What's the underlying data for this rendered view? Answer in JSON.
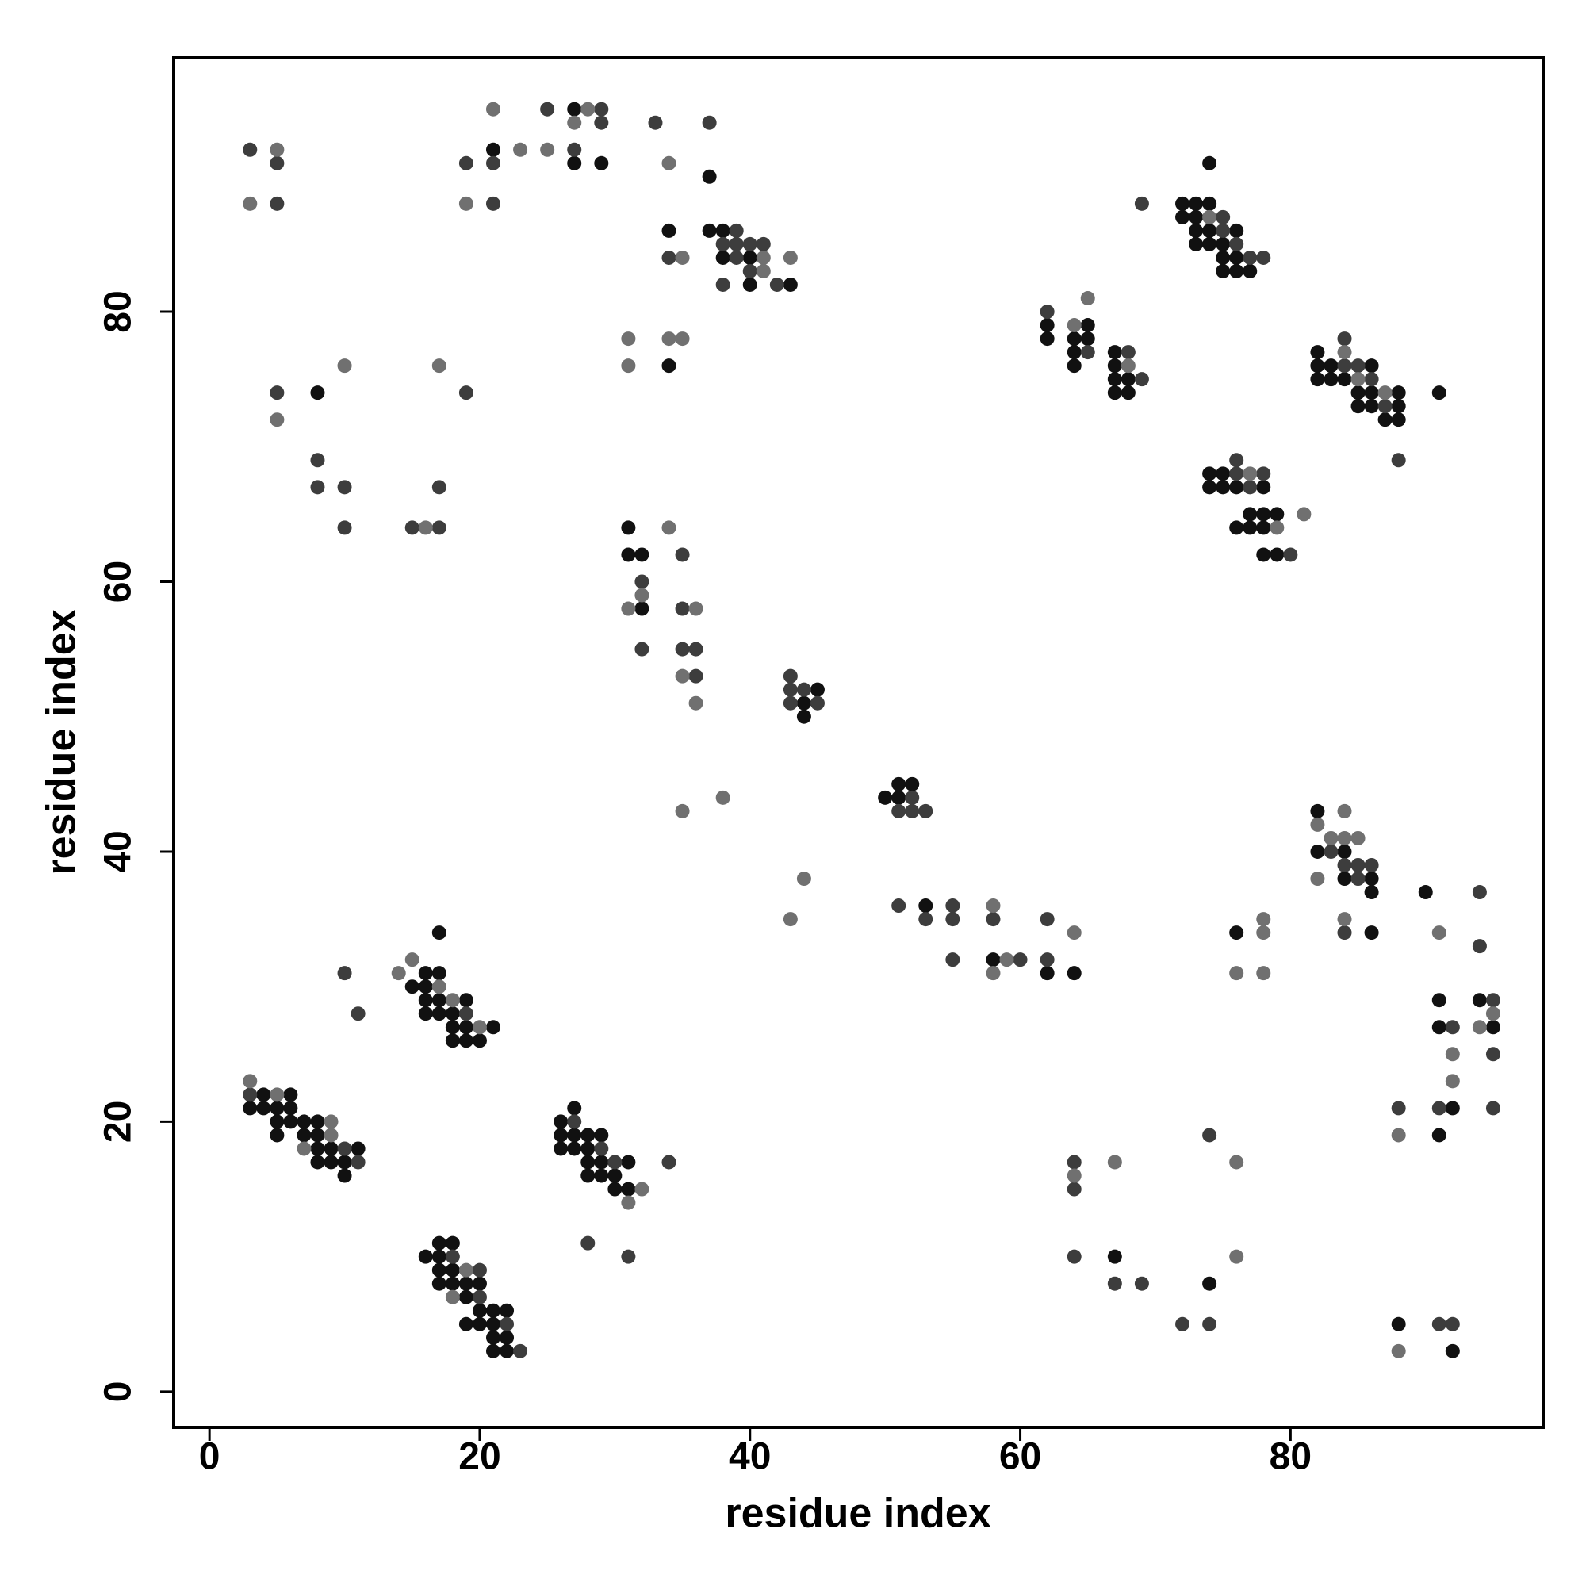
{
  "chart_data": {
    "type": "scatter",
    "xlabel": "residue index",
    "ylabel": "residue index",
    "xlim": [
      -2.65,
      98.7
    ],
    "ylim": [
      -2.65,
      98.8
    ],
    "xticks": [
      0,
      20,
      40,
      60,
      80
    ],
    "yticks": [
      0,
      20,
      40,
      60,
      80
    ],
    "grid": false,
    "series": [
      {
        "color": "#111111",
        "x": [
          4,
          6,
          3,
          4,
          5,
          6,
          5,
          6,
          7,
          8,
          5,
          7,
          8,
          8,
          9,
          11,
          8,
          9,
          10,
          10,
          17,
          16,
          17,
          15,
          16,
          16,
          17,
          19,
          16,
          17,
          18,
          18,
          19,
          21,
          18,
          19,
          20,
          17,
          18,
          16,
          17,
          17,
          18,
          17,
          18,
          19,
          20,
          19,
          20,
          21,
          22,
          19,
          20,
          21,
          21,
          22,
          21,
          22,
          27,
          26,
          26,
          27,
          28,
          29,
          26,
          27,
          28,
          28,
          29,
          31,
          28,
          29,
          30,
          30,
          31,
          8,
          21,
          27,
          27,
          29,
          37,
          34,
          37,
          38,
          38,
          40,
          40,
          43,
          34,
          31,
          31,
          32,
          32,
          45,
          44,
          44,
          50,
          51,
          52,
          51,
          53,
          58,
          62,
          64,
          62,
          62,
          65,
          64,
          65,
          64,
          64,
          67,
          67,
          67,
          68,
          67,
          68,
          74,
          72,
          73,
          74,
          72,
          73,
          73,
          74,
          76,
          73,
          74,
          75,
          75,
          76,
          75,
          76,
          77,
          82,
          82,
          83,
          86,
          82,
          83,
          84,
          85,
          86,
          88,
          85,
          86,
          88,
          87,
          88,
          91,
          74,
          75,
          74,
          75,
          76,
          78,
          77,
          78,
          79,
          76,
          77,
          78,
          78,
          79,
          82,
          82,
          84,
          84,
          86,
          86,
          86,
          76,
          90,
          91,
          94,
          91,
          95,
          92,
          91,
          67,
          74,
          88,
          92
        ],
        "values": [
          22,
          22,
          21,
          21,
          21,
          21,
          20,
          20,
          20,
          20,
          19,
          19,
          19,
          18,
          18,
          18,
          17,
          17,
          17,
          16,
          34,
          31,
          31,
          30,
          30,
          29,
          29,
          29,
          28,
          28,
          28,
          27,
          27,
          27,
          26,
          26,
          26,
          11,
          11,
          10,
          10,
          9,
          9,
          8,
          8,
          8,
          8,
          7,
          6,
          6,
          6,
          5,
          5,
          5,
          4,
          4,
          3,
          3,
          21,
          20,
          19,
          19,
          19,
          19,
          18,
          18,
          18,
          17,
          17,
          17,
          16,
          16,
          16,
          15,
          15,
          74,
          92,
          95,
          91,
          91,
          90,
          86,
          86,
          86,
          84,
          84,
          82,
          82,
          76,
          64,
          62,
          62,
          58,
          52,
          51,
          50,
          44,
          45,
          45,
          44,
          36,
          32,
          31,
          31,
          79,
          78,
          79,
          78,
          78,
          77,
          76,
          77,
          76,
          75,
          75,
          74,
          74,
          91,
          88,
          88,
          88,
          87,
          87,
          86,
          86,
          86,
          85,
          85,
          85,
          84,
          84,
          83,
          83,
          83,
          77,
          76,
          76,
          76,
          75,
          75,
          75,
          74,
          74,
          74,
          73,
          73,
          73,
          72,
          72,
          74,
          68,
          68,
          67,
          67,
          67,
          67,
          65,
          65,
          65,
          64,
          64,
          64,
          62,
          62,
          43,
          40,
          40,
          38,
          38,
          37,
          34,
          34,
          37,
          29,
          29,
          27,
          27,
          21,
          19,
          10,
          8,
          5,
          3
        ]
      },
      {
        "color": "#3d3d3d",
        "x": [
          3,
          10,
          11,
          10,
          11,
          19,
          18,
          20,
          20,
          22,
          23,
          27,
          29,
          30,
          34,
          28,
          31,
          3,
          5,
          5,
          5,
          8,
          8,
          10,
          10,
          15,
          17,
          17,
          19,
          19,
          21,
          21,
          25,
          27,
          29,
          29,
          33,
          37,
          34,
          39,
          38,
          39,
          40,
          41,
          39,
          40,
          38,
          42,
          35,
          32,
          35,
          32,
          35,
          36,
          36,
          43,
          43,
          44,
          43,
          45,
          52,
          51,
          52,
          53,
          51,
          55,
          53,
          55,
          58,
          55,
          60,
          62,
          62,
          62,
          65,
          68,
          69,
          69,
          75,
          75,
          76,
          77,
          78,
          84,
          84,
          85,
          86,
          87,
          88,
          76,
          76,
          78,
          77,
          80,
          83,
          84,
          85,
          86,
          85,
          84,
          94,
          94,
          95,
          92,
          95,
          88,
          91,
          95,
          64,
          64,
          74,
          64,
          67,
          69,
          72,
          74,
          91,
          92
        ],
        "values": [
          22,
          18,
          17,
          31,
          28,
          28,
          10,
          9,
          7,
          5,
          3,
          20,
          18,
          17,
          17,
          11,
          10,
          92,
          91,
          88,
          74,
          69,
          67,
          67,
          64,
          64,
          64,
          67,
          74,
          91,
          91,
          88,
          95,
          92,
          95,
          94,
          94,
          94,
          84,
          86,
          85,
          85,
          85,
          85,
          84,
          83,
          82,
          82,
          62,
          60,
          58,
          55,
          55,
          55,
          53,
          53,
          52,
          52,
          51,
          51,
          44,
          43,
          43,
          43,
          36,
          36,
          35,
          35,
          35,
          32,
          32,
          35,
          32,
          80,
          77,
          77,
          75,
          88,
          87,
          86,
          85,
          84,
          84,
          78,
          76,
          76,
          75,
          73,
          69,
          69,
          68,
          68,
          67,
          62,
          40,
          39,
          39,
          39,
          38,
          34,
          37,
          33,
          29,
          27,
          25,
          21,
          21,
          21,
          17,
          15,
          19,
          10,
          8,
          8,
          5,
          5,
          5,
          5
        ]
      },
      {
        "color": "#707070",
        "x": [
          3,
          5,
          9,
          9,
          7,
          15,
          14,
          17,
          18,
          20,
          19,
          18,
          32,
          31,
          5,
          3,
          5,
          10,
          16,
          17,
          19,
          21,
          23,
          25,
          27,
          28,
          34,
          35,
          41,
          43,
          41,
          31,
          34,
          35,
          31,
          34,
          32,
          31,
          36,
          35,
          36,
          35,
          38,
          43,
          44,
          58,
          59,
          58,
          64,
          64,
          65,
          68,
          74,
          84,
          85,
          87,
          77,
          81,
          79,
          82,
          83,
          84,
          84,
          85,
          82,
          84,
          78,
          78,
          76,
          78,
          91,
          94,
          95,
          92,
          92,
          88,
          64,
          67,
          76,
          76,
          88
        ],
        "values": [
          23,
          22,
          20,
          19,
          18,
          32,
          31,
          30,
          29,
          27,
          9,
          7,
          15,
          14,
          92,
          88,
          72,
          76,
          64,
          76,
          88,
          95,
          92,
          92,
          94,
          95,
          91,
          84,
          84,
          84,
          83,
          78,
          78,
          78,
          76,
          64,
          59,
          58,
          58,
          53,
          51,
          43,
          44,
          35,
          38,
          36,
          32,
          31,
          34,
          79,
          81,
          76,
          87,
          77,
          75,
          74,
          68,
          65,
          64,
          42,
          41,
          43,
          41,
          41,
          38,
          35,
          35,
          34,
          31,
          31,
          34,
          27,
          28,
          25,
          23,
          19,
          16,
          17,
          17,
          10,
          3
        ]
      }
    ]
  }
}
